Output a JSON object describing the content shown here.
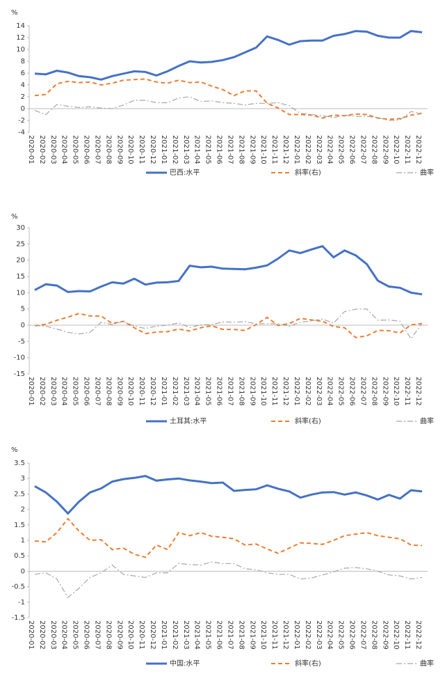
{
  "chart_data": [
    {
      "type": "line",
      "y_unit": "%",
      "categories": [
        "2020-01",
        "2020-02",
        "2020-03",
        "2020-04",
        "2020-05",
        "2020-06",
        "2020-07",
        "2020-08",
        "2020-09",
        "2020-10",
        "2020-11",
        "2020-12",
        "2021-01",
        "2021-02",
        "2021-03",
        "2021-04",
        "2021-05",
        "2021-06",
        "2021-07",
        "2021-08",
        "2021-09",
        "2021-10",
        "2021-11",
        "2021-12",
        "2022-01",
        "2022-02",
        "2022-03",
        "2022-04",
        "2022-05",
        "2022-06",
        "2022-07",
        "2022-08",
        "2022-09",
        "2022-10",
        "2022-11",
        "2022-12"
      ],
      "ylim": [
        -4,
        14
      ],
      "yticks": [
        -4,
        -2,
        0,
        2,
        4,
        6,
        8,
        10,
        12,
        14
      ],
      "series": [
        {
          "name": "巴西:水平",
          "color": "#4472c4",
          "style": "solid",
          "values": [
            5.9,
            5.8,
            6.4,
            6.1,
            5.5,
            5.3,
            4.9,
            5.5,
            5.9,
            6.3,
            6.2,
            5.6,
            6.3,
            7.2,
            8.0,
            7.8,
            7.9,
            8.2,
            8.7,
            9.5,
            10.3,
            12.2,
            11.6,
            10.8,
            11.4,
            11.5,
            11.5,
            12.3,
            12.6,
            13.1,
            13.0,
            12.3,
            12.0,
            12.0,
            13.1,
            12.9
          ]
        },
        {
          "name": "斜率(右)",
          "color": "#ed7d31",
          "style": "dash",
          "values": [
            2.2,
            2.4,
            4.2,
            4.6,
            4.4,
            4.5,
            4.0,
            4.3,
            4.8,
            4.9,
            5.0,
            4.5,
            4.3,
            4.8,
            4.4,
            4.5,
            3.8,
            3.2,
            2.2,
            3.0,
            3.0,
            0.9,
            0.1,
            -1.0,
            -1.0,
            -1.1,
            -1.6,
            -1.1,
            -1.2,
            -0.9,
            -1.0,
            -1.6,
            -1.8,
            -1.7,
            -1.1,
            -0.8
          ]
        },
        {
          "name": "曲率",
          "color": "#a5a5a5",
          "style": "dashdot",
          "values": [
            -0.3,
            -1.0,
            0.7,
            0.4,
            0.2,
            0.3,
            0.1,
            0.0,
            0.6,
            1.4,
            1.4,
            1.0,
            1.0,
            1.8,
            2.0,
            1.2,
            1.3,
            1.0,
            0.9,
            0.6,
            0.9,
            0.9,
            1.0,
            0.5,
            -0.8,
            -1.0,
            -1.2,
            -1.5,
            -1.1,
            -1.3,
            -1.3,
            -1.5,
            -2.0,
            -1.9,
            -0.5,
            -0.8
          ]
        }
      ]
    },
    {
      "type": "line",
      "y_unit": "%",
      "categories": [
        "2020-01",
        "2020-02",
        "2020-03",
        "2020-04",
        "2020-05",
        "2020-06",
        "2020-07",
        "2020-08",
        "2020-09",
        "2020-10",
        "2020-11",
        "2020-12",
        "2021-01",
        "2021-02",
        "2021-03",
        "2021-04",
        "2021-05",
        "2021-06",
        "2021-07",
        "2021-08",
        "2021-09",
        "2021-10",
        "2021-11",
        "2021-12",
        "2022-01",
        "2022-02",
        "2022-03",
        "2022-04",
        "2022-05",
        "2022-06",
        "2022-07",
        "2022-08",
        "2022-09",
        "2022-10",
        "2022-11",
        "2022-12"
      ],
      "ylim": [
        -15,
        30
      ],
      "yticks": [
        -15,
        -10,
        -5,
        0,
        5,
        10,
        15,
        20,
        25,
        30
      ],
      "series": [
        {
          "name": "土耳其:水平",
          "color": "#4472c4",
          "style": "solid",
          "values": [
            10.8,
            12.6,
            12.2,
            10.2,
            10.5,
            10.4,
            11.9,
            13.2,
            12.8,
            14.3,
            12.5,
            13.1,
            13.2,
            13.6,
            18.3,
            17.8,
            18.0,
            17.4,
            17.3,
            17.2,
            17.7,
            18.4,
            20.5,
            23.0,
            22.2,
            23.3,
            24.3,
            20.9,
            23.0,
            21.5,
            18.8,
            13.7,
            11.9,
            11.5,
            10.0,
            9.5
          ]
        },
        {
          "name": "斜率(右)",
          "color": "#ed7d31",
          "style": "dash",
          "values": [
            -0.2,
            0.3,
            1.5,
            2.5,
            3.6,
            2.8,
            2.8,
            0.5,
            1.2,
            -0.8,
            -2.6,
            -2.1,
            -2.0,
            -1.2,
            -1.8,
            -0.8,
            -0.2,
            -1.3,
            -1.3,
            -1.6,
            0.2,
            2.4,
            -0.1,
            0.5,
            2.1,
            1.6,
            1.2,
            -0.4,
            -0.8,
            -3.8,
            -3.3,
            -1.6,
            -1.7,
            -2.4,
            0.1,
            0.5
          ]
        },
        {
          "name": "曲率",
          "color": "#a5a5a5",
          "style": "dashdot",
          "values": [
            -0.1,
            -0.3,
            -1.2,
            -2.2,
            -2.7,
            -2.2,
            0.9,
            0.2,
            1.2,
            -0.3,
            -1.0,
            -0.3,
            0,
            0.7,
            -0.7,
            0.1,
            0.2,
            1.0,
            0.9,
            1.1,
            0.4,
            0.5,
            0.4,
            -0.3,
            0.9,
            1.3,
            1.9,
            0.6,
            4.2,
            4.9,
            5.0,
            1.5,
            1.6,
            1.2,
            -4.2,
            0.6
          ]
        }
      ]
    },
    {
      "type": "line",
      "y_unit": "%",
      "categories": [
        "2020-01",
        "2020-02",
        "2020-03",
        "2020-04",
        "2020-05",
        "2020-06",
        "2020-07",
        "2020-08",
        "2020-09",
        "2020-10",
        "2020-11",
        "2020-12",
        "2021-01",
        "2021-02",
        "2021-03",
        "2021-04",
        "2021-05",
        "2021-06",
        "2021-07",
        "2021-08",
        "2021-09",
        "2021-10",
        "2021-11",
        "2021-12",
        "2022-01",
        "2022-02",
        "2022-03",
        "2022-04",
        "2022-05",
        "2022-06",
        "2022-07",
        "2022-08",
        "2022-09",
        "2022-10",
        "2022-11",
        "2022-12"
      ],
      "ylim": [
        -1.5,
        3.5
      ],
      "yticks": [
        -1.5,
        -1,
        -0.5,
        0,
        0.5,
        1,
        1.5,
        2,
        2.5,
        3,
        3.5
      ],
      "series": [
        {
          "name": "中国:水平",
          "color": "#4472c4",
          "style": "solid",
          "values": [
            2.75,
            2.55,
            2.25,
            1.87,
            2.25,
            2.55,
            2.68,
            2.9,
            2.98,
            3.02,
            3.08,
            2.93,
            2.97,
            3.0,
            2.94,
            2.9,
            2.85,
            2.87,
            2.6,
            2.63,
            2.65,
            2.78,
            2.67,
            2.58,
            2.38,
            2.48,
            2.55,
            2.56,
            2.48,
            2.55,
            2.45,
            2.32,
            2.47,
            2.35,
            2.62,
            2.58
          ]
        },
        {
          "name": "斜率(右)",
          "color": "#ed7d31",
          "style": "dash",
          "values": [
            0.98,
            0.95,
            1.25,
            1.7,
            1.3,
            1.0,
            1.02,
            0.7,
            0.75,
            0.55,
            0.45,
            0.85,
            0.7,
            1.25,
            1.15,
            1.25,
            1.13,
            1.1,
            1.05,
            0.85,
            0.88,
            0.72,
            0.58,
            0.75,
            0.92,
            0.9,
            0.87,
            1.0,
            1.15,
            1.2,
            1.25,
            1.15,
            1.1,
            1.05,
            0.85,
            0.83
          ]
        },
        {
          "name": "曲率",
          "color": "#a5a5a5",
          "style": "dashdot",
          "values": [
            -0.1,
            -0.05,
            -0.25,
            -0.85,
            -0.55,
            -0.2,
            -0.05,
            0.2,
            -0.1,
            -0.15,
            -0.2,
            -0.05,
            -0.05,
            0.25,
            0.22,
            0.2,
            0.3,
            0.25,
            0.25,
            0.08,
            0.05,
            -0.05,
            -0.1,
            -0.1,
            -0.25,
            -0.22,
            -0.12,
            -0.02,
            0.1,
            0.12,
            0.08,
            0.0,
            -0.12,
            -0.15,
            -0.25,
            -0.2
          ]
        }
      ]
    }
  ]
}
